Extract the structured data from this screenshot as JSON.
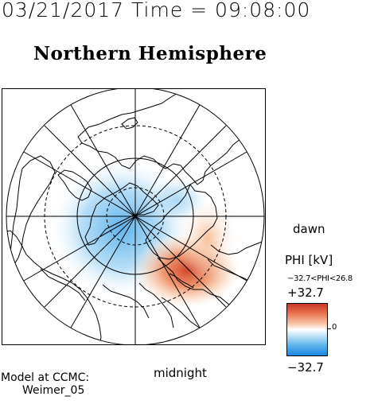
{
  "header": {
    "timestamp": "03/21/2017 Time = 09:08:00",
    "title": "Northern Hemisphere"
  },
  "map": {
    "label_dawn": "dawn",
    "label_midnight": "midnight",
    "potential_positive_color": "#d2472d",
    "potential_negative_color": "#3fa0ea"
  },
  "colorbar": {
    "title": "PHI [kV]",
    "range_text": "−32.7<PHI<26.8",
    "max_label": "+32.7",
    "min_label": "−32.7",
    "zero_label": "0",
    "high_color": "#c83426",
    "low_color": "#1b86e3"
  },
  "footer": {
    "model_line1": "Model at CCMC:",
    "model_line2": "Weimer_05"
  }
}
